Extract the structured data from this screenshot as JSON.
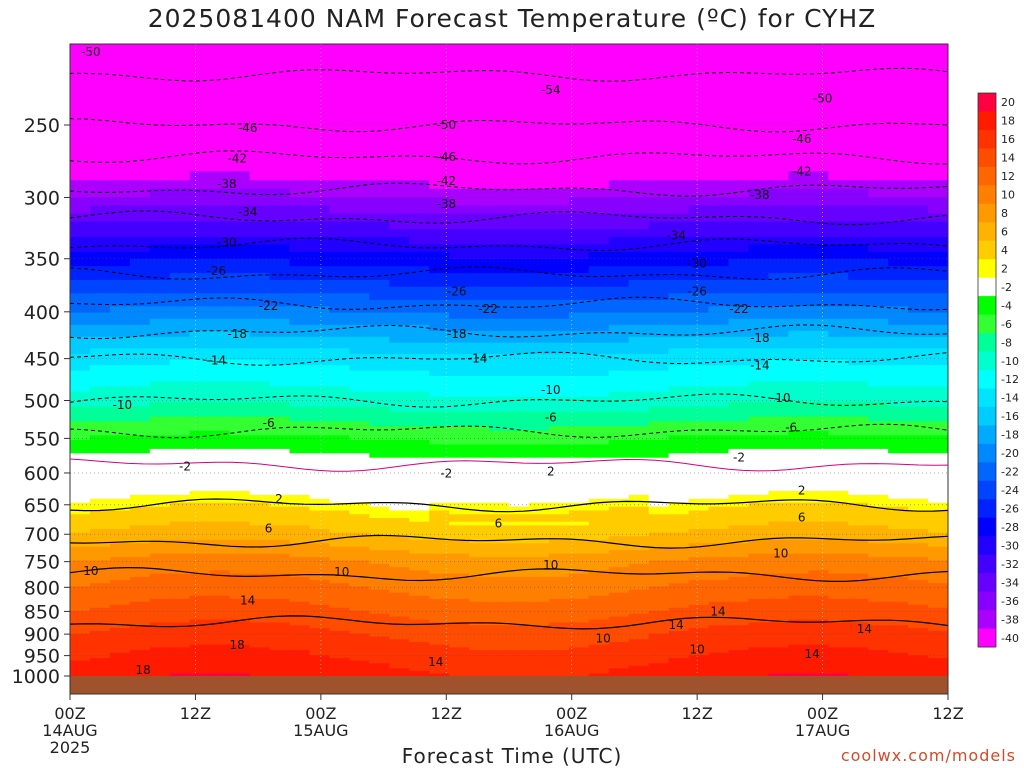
{
  "title": "2025081400 NAM Forecast Temperature (ºC) for CYHZ",
  "credit": "coolwx.com/models",
  "chart_data": {
    "type": "heatmap",
    "title": "2025081400 NAM Forecast Temperature (ºC) for CYHZ",
    "xlabel": "Forecast Time (UTC)",
    "ylabel": "",
    "x_hours_range": [
      0,
      84
    ],
    "y_pressure_range": [
      1000,
      200
    ],
    "y_ticks": [
      250,
      300,
      350,
      400,
      450,
      500,
      550,
      600,
      650,
      700,
      750,
      800,
      850,
      900,
      950,
      1000
    ],
    "x_ticks": [
      {
        "h": 0,
        "lines": [
          "00Z",
          "14AUG",
          "2025"
        ]
      },
      {
        "h": 12,
        "lines": [
          "12Z"
        ]
      },
      {
        "h": 24,
        "lines": [
          "00Z",
          "15AUG"
        ]
      },
      {
        "h": 36,
        "lines": [
          "12Z"
        ]
      },
      {
        "h": 48,
        "lines": [
          "00Z",
          "16AUG"
        ]
      },
      {
        "h": 60,
        "lines": [
          "12Z"
        ]
      },
      {
        "h": 72,
        "lines": [
          "00Z",
          "17AUG"
        ]
      },
      {
        "h": 84,
        "lines": [
          "12Z"
        ]
      }
    ],
    "colorbar": {
      "labels": [
        "20",
        "18",
        "16",
        "14",
        "12",
        "10",
        "8",
        "6",
        "4",
        "2",
        "-2",
        "-4",
        "-6",
        "-8",
        "-10",
        "-12",
        "-14",
        "-16",
        "-18",
        "-20",
        "-22",
        "-24",
        "-26",
        "-28",
        "-30",
        "-32",
        "-34",
        "-36",
        "-38",
        "-40"
      ],
      "colors": [
        "#ff0040",
        "#ff1a00",
        "#ff3300",
        "#ff4d00",
        "#ff6600",
        "#ff8000",
        "#ff9900",
        "#ffb300",
        "#ffcc00",
        "#ffff00",
        "#ffffff",
        "#00ff00",
        "#33ff33",
        "#00ff99",
        "#00ffcc",
        "#00ffff",
        "#00e5ff",
        "#00ccff",
        "#00aaff",
        "#0088ff",
        "#0066ff",
        "#0044ff",
        "#0022ff",
        "#0000ff",
        "#2200ff",
        "#4400ff",
        "#6600ff",
        "#8800ff",
        "#aa00ff",
        "#ff00ff"
      ]
    },
    "temperature_profile": [
      {
        "p": 1000,
        "t": 18
      },
      {
        "p": 900,
        "t": 15
      },
      {
        "p": 850,
        "t": 13
      },
      {
        "p": 800,
        "t": 11
      },
      {
        "p": 750,
        "t": 9
      },
      {
        "p": 700,
        "t": 5
      },
      {
        "p": 650,
        "t": 2
      },
      {
        "p": 600,
        "t": -1
      },
      {
        "p": 550,
        "t": -5
      },
      {
        "p": 500,
        "t": -10
      },
      {
        "p": 450,
        "t": -14
      },
      {
        "p": 400,
        "t": -21
      },
      {
        "p": 350,
        "t": -28
      },
      {
        "p": 300,
        "t": -37
      },
      {
        "p": 250,
        "t": -46
      },
      {
        "p": 200,
        "t": -53
      }
    ],
    "contour_labels": [
      {
        "v": "-50",
        "h": 2,
        "p": 208
      },
      {
        "v": "-54",
        "h": 46,
        "p": 229
      },
      {
        "v": "-50",
        "h": 36,
        "p": 250
      },
      {
        "v": "-50",
        "h": 72,
        "p": 234
      },
      {
        "v": "-46",
        "h": 17,
        "p": 252
      },
      {
        "v": "-46",
        "h": 36,
        "p": 271
      },
      {
        "v": "-46",
        "h": 70,
        "p": 259
      },
      {
        "v": "-42",
        "h": 16,
        "p": 272
      },
      {
        "v": "-42",
        "h": 36,
        "p": 288
      },
      {
        "v": "-42",
        "h": 70,
        "p": 281
      },
      {
        "v": "-38",
        "h": 15,
        "p": 290
      },
      {
        "v": "-38",
        "h": 36,
        "p": 305
      },
      {
        "v": "-38",
        "h": 66,
        "p": 298
      },
      {
        "v": "-34",
        "h": 17,
        "p": 311
      },
      {
        "v": "-34",
        "h": 58,
        "p": 330
      },
      {
        "v": "-30",
        "h": 15,
        "p": 336
      },
      {
        "v": "-30",
        "h": 60,
        "p": 354
      },
      {
        "v": "-26",
        "h": 14,
        "p": 361
      },
      {
        "v": "-26",
        "h": 37,
        "p": 380
      },
      {
        "v": "-26",
        "h": 60,
        "p": 380
      },
      {
        "v": "-22",
        "h": 19,
        "p": 394
      },
      {
        "v": "-22",
        "h": 40,
        "p": 397
      },
      {
        "v": "-22",
        "h": 64,
        "p": 397
      },
      {
        "v": "-18",
        "h": 16,
        "p": 423
      },
      {
        "v": "-18",
        "h": 37,
        "p": 423
      },
      {
        "v": "-18",
        "h": 66,
        "p": 427
      },
      {
        "v": "-14",
        "h": 14,
        "p": 452
      },
      {
        "v": "-14",
        "h": 39,
        "p": 450
      },
      {
        "v": "-14",
        "h": 66,
        "p": 458
      },
      {
        "v": "-10",
        "h": 5,
        "p": 506
      },
      {
        "v": "-10",
        "h": 46,
        "p": 487
      },
      {
        "v": "-10",
        "h": 68,
        "p": 497
      },
      {
        "v": "-6",
        "h": 19,
        "p": 529
      },
      {
        "v": "-6",
        "h": 46,
        "p": 522
      },
      {
        "v": "-6",
        "h": 69,
        "p": 535
      },
      {
        "v": "-2",
        "h": 11,
        "p": 590
      },
      {
        "v": "-2",
        "h": 36,
        "p": 601
      },
      {
        "v": "-2",
        "h": 64,
        "p": 577
      },
      {
        "v": "2",
        "h": 20,
        "p": 641
      },
      {
        "v": "2",
        "h": 46,
        "p": 598
      },
      {
        "v": "2",
        "h": 70,
        "p": 627
      },
      {
        "v": "6",
        "h": 19,
        "p": 690
      },
      {
        "v": "6",
        "h": 41,
        "p": 681
      },
      {
        "v": "6",
        "h": 70,
        "p": 671
      },
      {
        "v": "10",
        "h": 2,
        "p": 768
      },
      {
        "v": "10",
        "h": 26,
        "p": 770
      },
      {
        "v": "10",
        "h": 46,
        "p": 756
      },
      {
        "v": "10",
        "h": 68,
        "p": 735
      },
      {
        "v": "14",
        "h": 17,
        "p": 827
      },
      {
        "v": "14",
        "h": 62,
        "p": 850
      },
      {
        "v": "14",
        "h": 58,
        "p": 880
      },
      {
        "v": "14",
        "h": 76,
        "p": 889
      },
      {
        "v": "14",
        "h": 35,
        "p": 965
      },
      {
        "v": "14",
        "h": 71,
        "p": 946
      },
      {
        "v": "10",
        "h": 51,
        "p": 910
      },
      {
        "v": "10",
        "h": 60,
        "p": 936
      },
      {
        "v": "18",
        "h": 16,
        "p": 925
      },
      {
        "v": "18",
        "h": 7,
        "p": 985
      }
    ]
  }
}
